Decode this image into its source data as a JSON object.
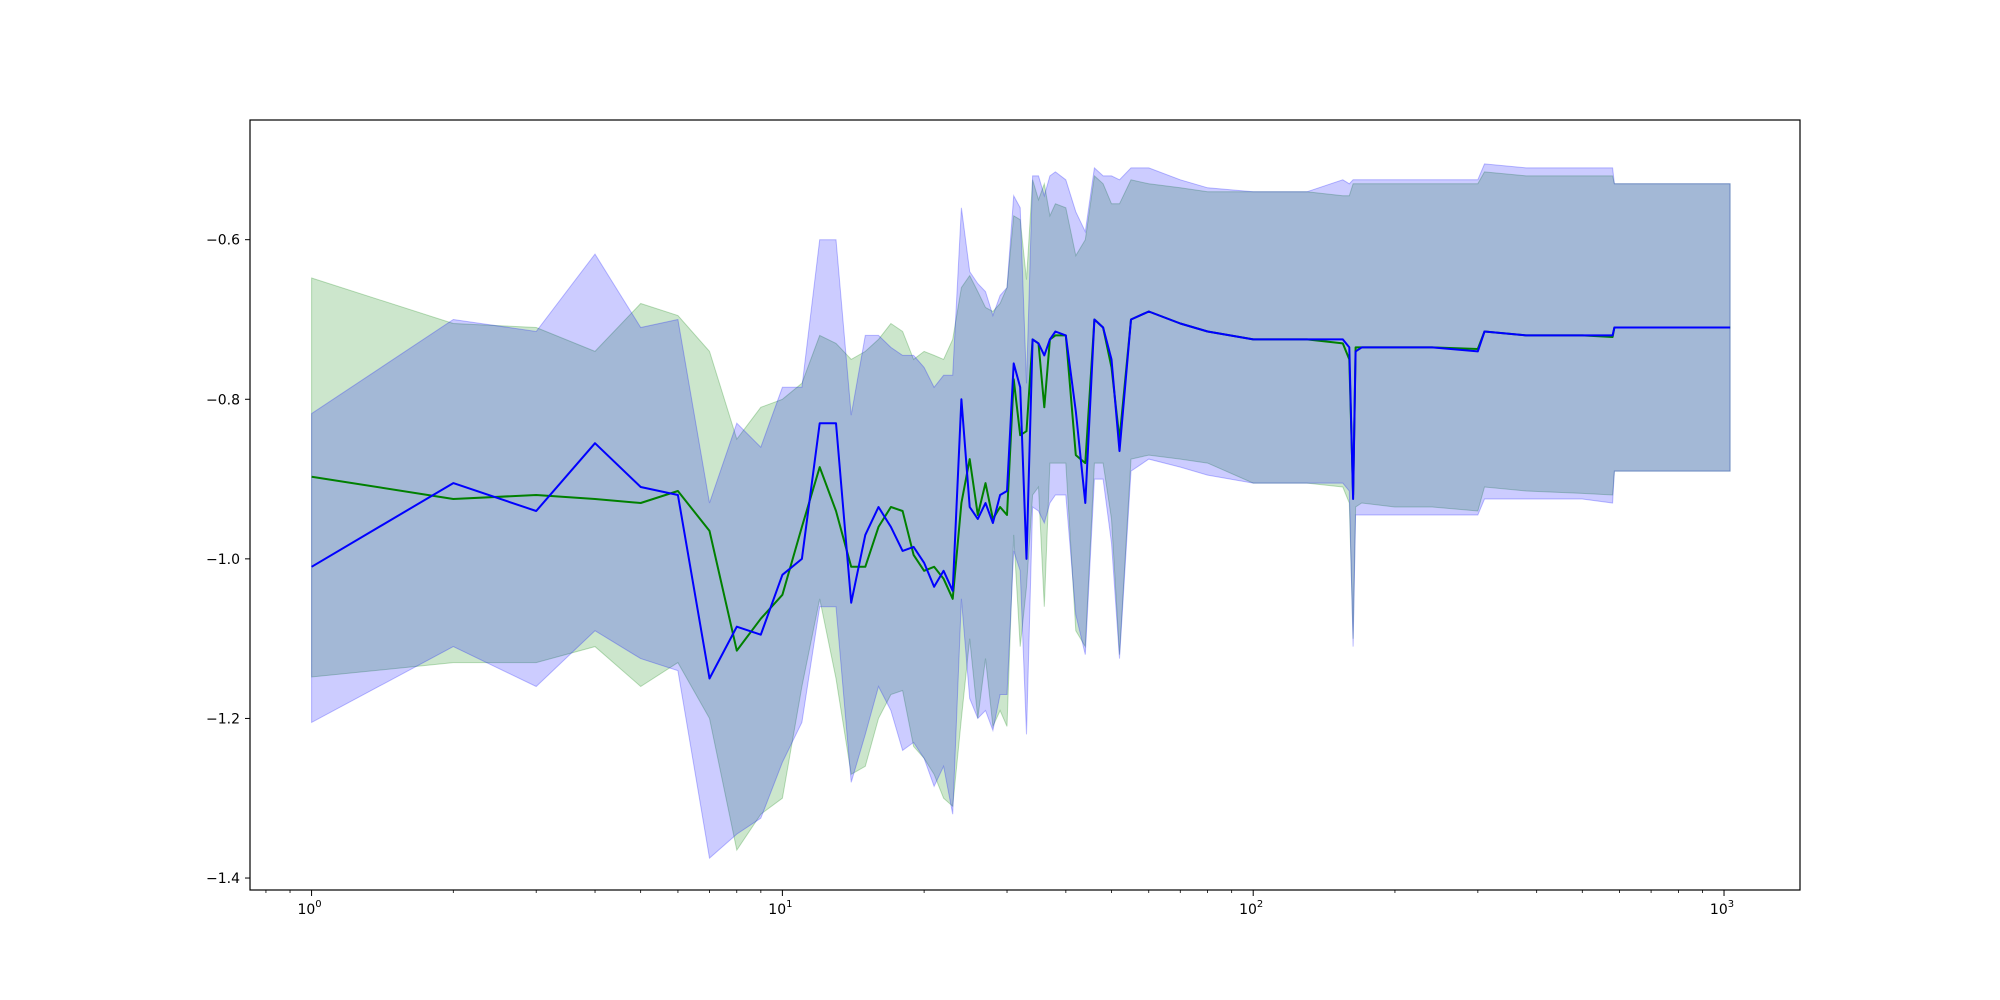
{
  "chart_data": {
    "type": "line",
    "title": "",
    "xlabel": "",
    "ylabel": "",
    "xscale": "log",
    "xlim": [
      0.74,
      1450
    ],
    "ylim": [
      -1.415,
      -0.45
    ],
    "grid": false,
    "yticks": [
      {
        "value": -0.6,
        "label": "−0.6"
      },
      {
        "value": -0.8,
        "label": "−0.8"
      },
      {
        "value": -1.0,
        "label": "−1.0"
      },
      {
        "value": -1.2,
        "label": "−1.2"
      },
      {
        "value": -1.4,
        "label": "−1.4"
      }
    ],
    "xticks": [
      {
        "value": 1,
        "base": "10",
        "exp": "0"
      },
      {
        "value": 10,
        "base": "10",
        "exp": "1"
      },
      {
        "value": 100,
        "base": "10",
        "exp": "2"
      },
      {
        "value": 1000,
        "base": "10",
        "exp": "3"
      }
    ],
    "series": [
      {
        "color": "#008000",
        "band_color": "#008000",
        "band_opacity": 0.2,
        "x": [
          1,
          2,
          3,
          4,
          5,
          6,
          7,
          8,
          9,
          10,
          11,
          12,
          13,
          14,
          15,
          16,
          17,
          18,
          19,
          20,
          21,
          22,
          23,
          24,
          25,
          26,
          27,
          28,
          29,
          30,
          31,
          32,
          33,
          34,
          35,
          36,
          37,
          38,
          40,
          42,
          44,
          46,
          48,
          50,
          52,
          55,
          60,
          70,
          80,
          100,
          130,
          155,
          160,
          163,
          165,
          170,
          200,
          240,
          300,
          310,
          380,
          500,
          580,
          585,
          1030
        ],
        "y": [
          -0.897,
          -0.925,
          -0.92,
          -0.925,
          -0.93,
          -0.915,
          -0.965,
          -1.115,
          -1.075,
          -1.045,
          -0.96,
          -0.885,
          -0.94,
          -1.01,
          -1.01,
          -0.96,
          -0.935,
          -0.94,
          -0.995,
          -1.015,
          -1.01,
          -1.025,
          -1.05,
          -0.93,
          -0.875,
          -0.945,
          -0.905,
          -0.95,
          -0.935,
          -0.945,
          -0.775,
          -0.845,
          -0.84,
          -0.725,
          -0.73,
          -0.81,
          -0.725,
          -0.72,
          -0.72,
          -0.87,
          -0.88,
          -0.7,
          -0.71,
          -0.76,
          -0.85,
          -0.7,
          -0.69,
          -0.705,
          -0.715,
          -0.725,
          -0.725,
          -0.73,
          -0.75,
          -0.92,
          -0.735,
          -0.735,
          -0.735,
          -0.735,
          -0.737,
          -0.715,
          -0.72,
          -0.72,
          -0.722,
          -0.71,
          -0.71
        ],
        "upper": [
          -0.648,
          -0.705,
          -0.71,
          -0.74,
          -0.68,
          -0.695,
          -0.74,
          -0.85,
          -0.81,
          -0.8,
          -0.78,
          -0.72,
          -0.73,
          -0.75,
          -0.74,
          -0.725,
          -0.705,
          -0.715,
          -0.75,
          -0.74,
          -0.745,
          -0.75,
          -0.725,
          -0.66,
          -0.645,
          -0.665,
          -0.685,
          -0.69,
          -0.68,
          -0.66,
          -0.57,
          -0.575,
          -0.65,
          -0.525,
          -0.55,
          -0.53,
          -0.57,
          -0.555,
          -0.56,
          -0.62,
          -0.6,
          -0.52,
          -0.53,
          -0.555,
          -0.555,
          -0.525,
          -0.53,
          -0.535,
          -0.54,
          -0.54,
          -0.54,
          -0.545,
          -0.545,
          -0.53,
          -0.53,
          -0.53,
          -0.53,
          -0.53,
          -0.53,
          -0.515,
          -0.52,
          -0.52,
          -0.52,
          -0.53,
          -0.53
        ],
        "lower": [
          -1.148,
          -1.13,
          -1.13,
          -1.11,
          -1.16,
          -1.13,
          -1.2,
          -1.365,
          -1.32,
          -1.3,
          -1.16,
          -1.05,
          -1.15,
          -1.27,
          -1.26,
          -1.2,
          -1.17,
          -1.165,
          -1.235,
          -1.25,
          -1.27,
          -1.3,
          -1.31,
          -1.2,
          -1.1,
          -1.2,
          -1.125,
          -1.21,
          -1.19,
          -1.21,
          -0.97,
          -1.11,
          -1.035,
          -0.92,
          -0.91,
          -1.06,
          -0.88,
          -0.88,
          -0.88,
          -1.09,
          -1.11,
          -0.88,
          -0.88,
          -0.95,
          -1.12,
          -0.875,
          -0.87,
          -0.875,
          -0.88,
          -0.905,
          -0.905,
          -0.91,
          -0.93,
          -1.1,
          -0.935,
          -0.93,
          -0.935,
          -0.935,
          -0.94,
          -0.91,
          -0.915,
          -0.918,
          -0.92,
          -0.89,
          -0.89
        ]
      },
      {
        "color": "#0000ff",
        "band_color": "#0000ff",
        "band_opacity": 0.2,
        "x": [
          1,
          2,
          3,
          4,
          5,
          6,
          7,
          8,
          9,
          10,
          11,
          12,
          13,
          14,
          15,
          16,
          17,
          18,
          19,
          20,
          21,
          22,
          23,
          24,
          25,
          26,
          27,
          28,
          29,
          30,
          31,
          32,
          33,
          34,
          35,
          36,
          37,
          38,
          40,
          42,
          44,
          46,
          48,
          50,
          52,
          55,
          60,
          70,
          80,
          100,
          130,
          155,
          160,
          163,
          165,
          170,
          200,
          240,
          300,
          310,
          380,
          500,
          580,
          585,
          1030
        ],
        "y": [
          -1.01,
          -0.905,
          -0.94,
          -0.855,
          -0.91,
          -0.92,
          -1.15,
          -1.085,
          -1.095,
          -1.02,
          -1.0,
          -0.83,
          -0.83,
          -1.055,
          -0.97,
          -0.935,
          -0.96,
          -0.99,
          -0.985,
          -1.005,
          -1.035,
          -1.015,
          -1.04,
          -0.8,
          -0.935,
          -0.95,
          -0.93,
          -0.955,
          -0.92,
          -0.915,
          -0.755,
          -0.785,
          -1.0,
          -0.725,
          -0.73,
          -0.745,
          -0.725,
          -0.715,
          -0.72,
          -0.815,
          -0.93,
          -0.7,
          -0.71,
          -0.75,
          -0.865,
          -0.7,
          -0.69,
          -0.705,
          -0.715,
          -0.725,
          -0.725,
          -0.725,
          -0.735,
          -0.925,
          -0.74,
          -0.735,
          -0.735,
          -0.735,
          -0.74,
          -0.715,
          -0.72,
          -0.72,
          -0.72,
          -0.71,
          -0.71
        ],
        "upper": [
          -0.818,
          -0.7,
          -0.715,
          -0.618,
          -0.71,
          -0.7,
          -0.93,
          -0.83,
          -0.86,
          -0.785,
          -0.785,
          -0.6,
          -0.6,
          -0.82,
          -0.72,
          -0.72,
          -0.735,
          -0.745,
          -0.745,
          -0.76,
          -0.785,
          -0.77,
          -0.77,
          -0.56,
          -0.64,
          -0.655,
          -0.665,
          -0.695,
          -0.67,
          -0.66,
          -0.545,
          -0.56,
          -0.78,
          -0.52,
          -0.52,
          -0.545,
          -0.52,
          -0.515,
          -0.525,
          -0.565,
          -0.59,
          -0.51,
          -0.52,
          -0.52,
          -0.525,
          -0.51,
          -0.51,
          -0.525,
          -0.535,
          -0.54,
          -0.54,
          -0.525,
          -0.53,
          -0.525,
          -0.525,
          -0.525,
          -0.525,
          -0.525,
          -0.525,
          -0.505,
          -0.51,
          -0.51,
          -0.51,
          -0.53,
          -0.53
        ],
        "lower": [
          -1.205,
          -1.11,
          -1.16,
          -1.09,
          -1.125,
          -1.14,
          -1.375,
          -1.345,
          -1.325,
          -1.255,
          -1.205,
          -1.06,
          -1.06,
          -1.28,
          -1.22,
          -1.16,
          -1.19,
          -1.24,
          -1.23,
          -1.25,
          -1.285,
          -1.26,
          -1.32,
          -1.05,
          -1.175,
          -1.2,
          -1.19,
          -1.215,
          -1.17,
          -1.17,
          -0.99,
          -1.015,
          -1.22,
          -0.935,
          -0.94,
          -0.955,
          -0.93,
          -0.92,
          -0.92,
          -1.07,
          -1.12,
          -0.9,
          -0.9,
          -0.98,
          -1.125,
          -0.89,
          -0.875,
          -0.885,
          -0.895,
          -0.905,
          -0.905,
          -0.905,
          -0.915,
          -1.11,
          -0.945,
          -0.945,
          -0.945,
          -0.945,
          -0.945,
          -0.925,
          -0.925,
          -0.925,
          -0.93,
          -0.89,
          -0.89
        ]
      }
    ]
  }
}
